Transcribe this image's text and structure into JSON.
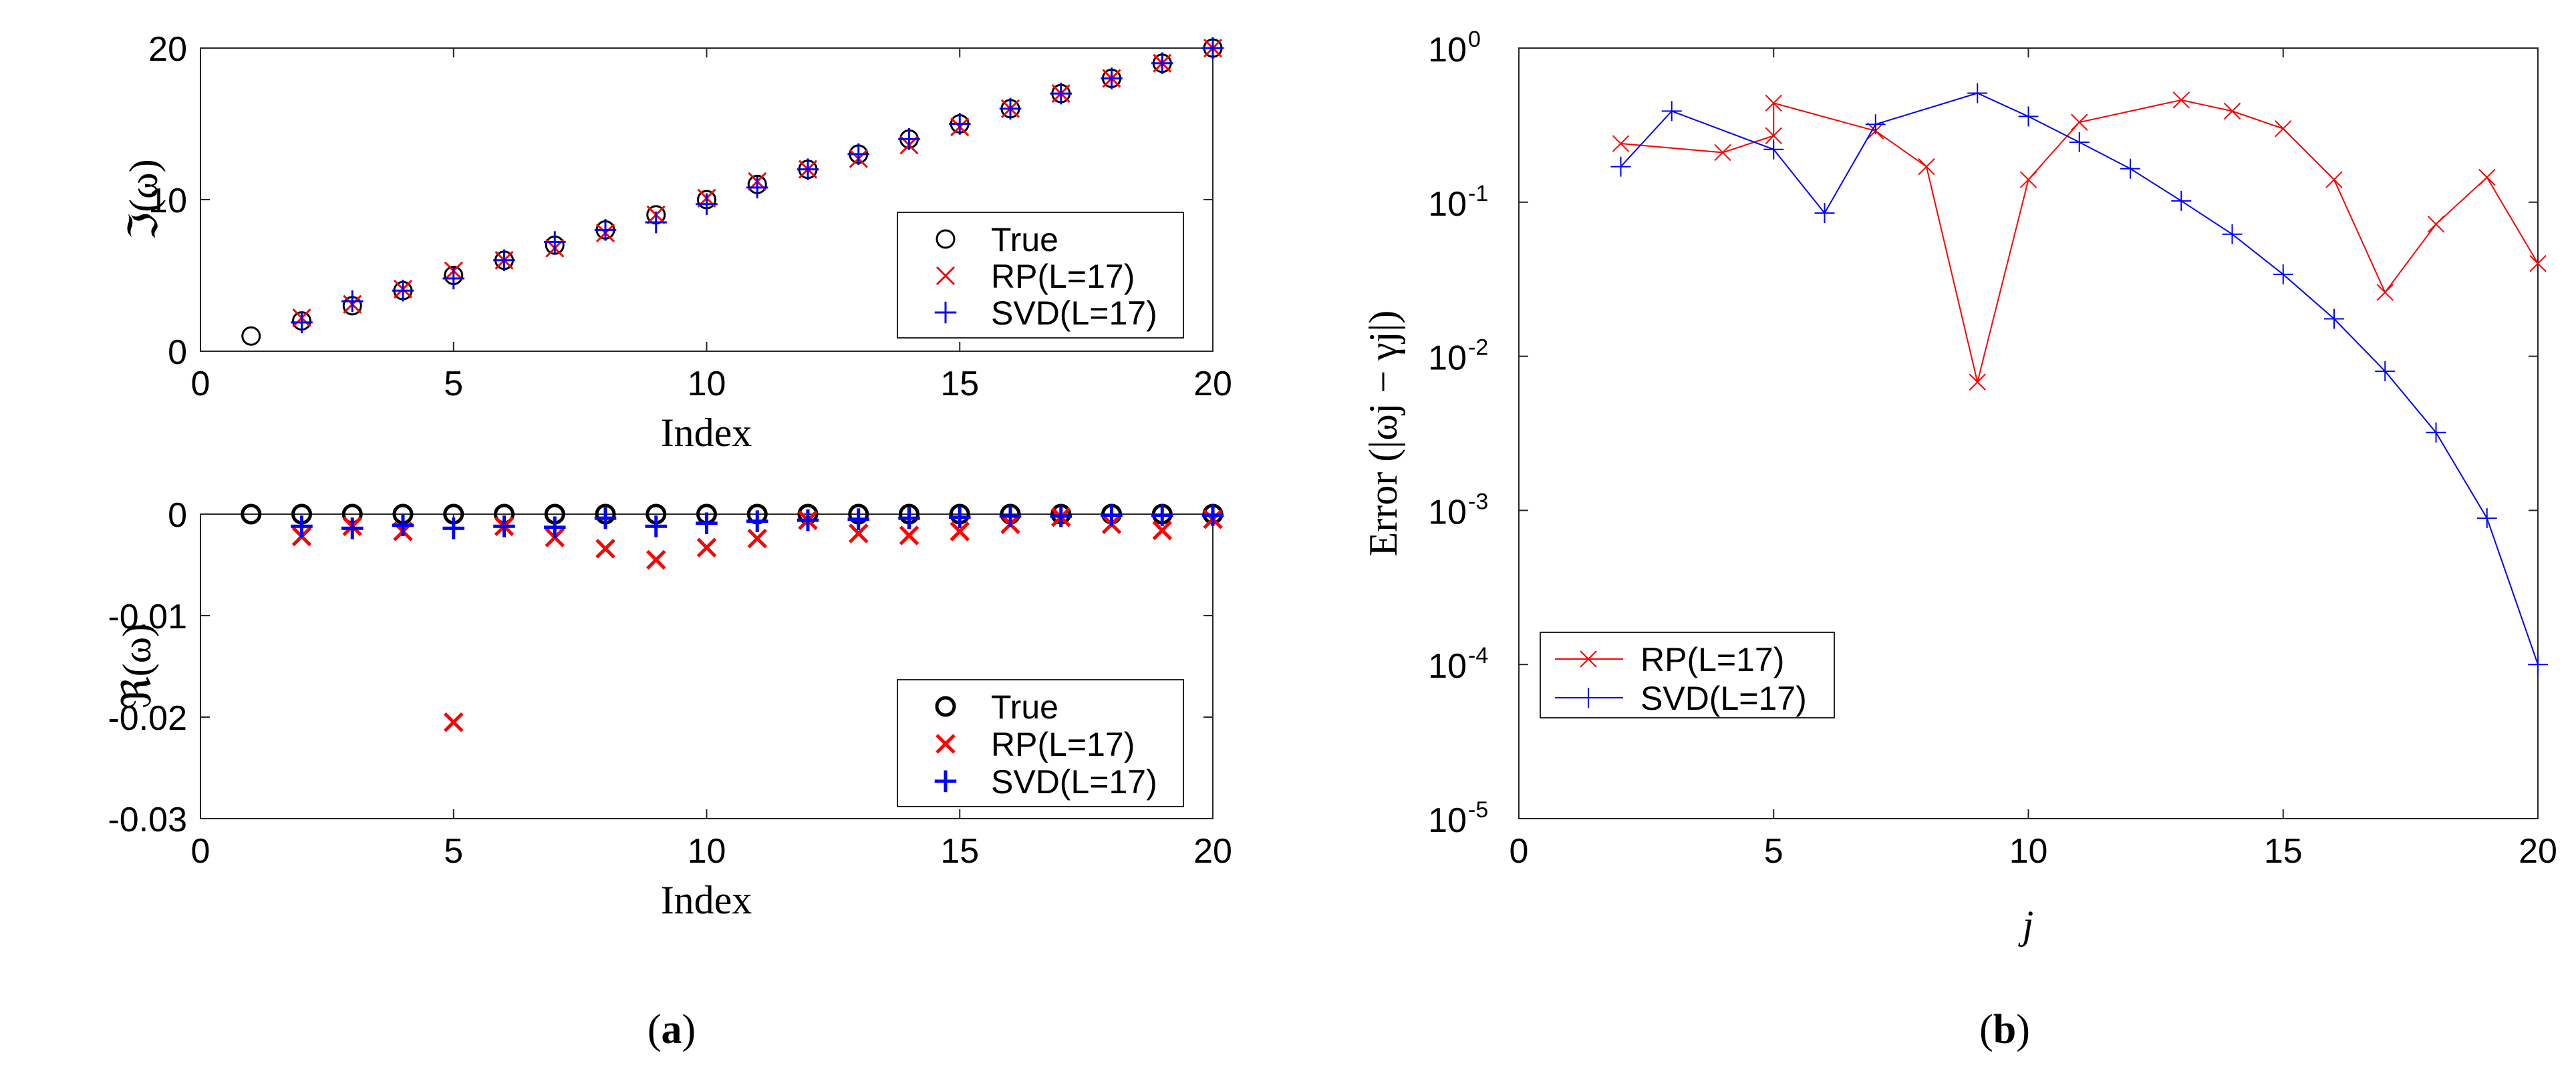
{
  "chart_data": [
    {
      "id": "a-top",
      "type": "scatter",
      "title": "",
      "xlabel": "Index",
      "ylabel": "ℑ(ω)",
      "xlim": [
        0,
        20
      ],
      "ylim": [
        0,
        20
      ],
      "xticks": [
        "0",
        "5",
        "10",
        "15",
        "20"
      ],
      "yticks": [
        "0",
        "10",
        "20"
      ],
      "legend": {
        "position": "lower-right",
        "entries": [
          "True",
          "RP(L=17)",
          "SVD(L=17)"
        ]
      },
      "series": [
        {
          "name": "True",
          "marker": "circle",
          "color": "#000000",
          "x": [
            1,
            2,
            3,
            4,
            5,
            6,
            7,
            8,
            9,
            10,
            11,
            12,
            13,
            14,
            15,
            16,
            17,
            18,
            19,
            20
          ],
          "y": [
            1,
            2,
            3,
            4,
            5,
            6,
            7,
            8,
            9,
            10,
            11,
            12,
            13,
            14,
            15,
            16,
            17,
            18,
            19,
            20
          ]
        },
        {
          "name": "RP(L=17)",
          "marker": "x",
          "color": "#ff0000",
          "x": [
            2,
            3,
            4,
            5,
            6,
            7,
            8,
            9,
            10,
            11,
            12,
            13,
            14,
            15,
            16,
            17,
            18,
            19,
            20
          ],
          "y": [
            2.2,
            3.1,
            4.1,
            5.3,
            6.0,
            6.8,
            7.8,
            9.0,
            10.1,
            11.2,
            12.0,
            12.7,
            13.6,
            14.8,
            16.0,
            17.0,
            18.0,
            19.0,
            20.0
          ]
        },
        {
          "name": "SVD(L=17)",
          "marker": "plus",
          "color": "#0000ff",
          "x": [
            2,
            3,
            4,
            5,
            6,
            7,
            8,
            9,
            10,
            11,
            12,
            13,
            14,
            15,
            16,
            17,
            18,
            19,
            20
          ],
          "y": [
            1.9,
            3.3,
            4.0,
            4.8,
            6.0,
            7.2,
            8.0,
            8.5,
            9.7,
            10.8,
            12.0,
            13.0,
            14.0,
            15.0,
            16.0,
            17.0,
            18.0,
            19.0,
            20.0
          ]
        }
      ]
    },
    {
      "id": "a-bottom",
      "type": "scatter",
      "title": "",
      "xlabel": "Index",
      "ylabel": "ℜ(ω)",
      "xlim": [
        0,
        20
      ],
      "ylim": [
        -0.03,
        0
      ],
      "xticks": [
        "0",
        "5",
        "10",
        "15",
        "20"
      ],
      "yticks": [
        "0",
        "-0.01",
        "-0.02",
        "-0.03"
      ],
      "legend": {
        "position": "lower-right",
        "entries": [
          "True",
          "RP(L=17)",
          "SVD(L=17)"
        ]
      },
      "series": [
        {
          "name": "True",
          "marker": "circle",
          "color": "#000000",
          "x": [
            1,
            2,
            3,
            4,
            5,
            6,
            7,
            8,
            9,
            10,
            11,
            12,
            13,
            14,
            15,
            16,
            17,
            18,
            19,
            20
          ],
          "y": [
            0,
            0,
            0,
            0,
            0,
            0,
            0,
            0,
            0,
            0,
            0,
            0,
            0,
            0,
            0,
            0,
            0,
            0,
            0,
            0
          ]
        },
        {
          "name": "RP(L=17)",
          "marker": "x",
          "color": "#ff0000",
          "x": [
            2,
            3,
            4,
            5,
            6,
            7,
            8,
            9,
            10,
            11,
            12,
            13,
            14,
            15,
            16,
            17,
            18,
            19,
            20
          ],
          "y": [
            -0.0022,
            -0.0012,
            -0.0017,
            -0.0205,
            -0.0012,
            -0.0023,
            -0.0034,
            -0.0045,
            -0.0033,
            -0.0024,
            -0.0006,
            -0.0019,
            -0.0021,
            -0.0017,
            -0.001,
            -0.0003,
            -0.001,
            -0.0016,
            -0.0005
          ]
        },
        {
          "name": "SVD(L=17)",
          "marker": "plus",
          "color": "#0000ff",
          "x": [
            2,
            3,
            4,
            5,
            6,
            7,
            8,
            9,
            10,
            11,
            12,
            13,
            14,
            15,
            16,
            17,
            18,
            19,
            20
          ],
          "y": [
            -0.0012,
            -0.0014,
            -0.0011,
            -0.0014,
            -0.0012,
            -0.0013,
            -0.0004,
            -0.0012,
            -0.0009,
            -0.0007,
            -0.0006,
            -0.0005,
            -0.0004,
            -0.0003,
            -0.0002,
            -0.0002,
            -0.0001,
            -0.0001,
            -0.0001
          ]
        }
      ]
    },
    {
      "id": "b",
      "type": "line",
      "title": "",
      "xlabel": "j",
      "ylabel": "Error (|ωj − γj|)",
      "xlim": [
        0,
        20
      ],
      "ylim": [
        1e-05,
        1
      ],
      "yscale": "log",
      "xticks": [
        "0",
        "5",
        "10",
        "15",
        "20"
      ],
      "yticks": [
        {
          "base": "10",
          "exp": "0"
        },
        {
          "base": "10",
          "exp": "-1"
        },
        {
          "base": "10",
          "exp": "-2"
        },
        {
          "base": "10",
          "exp": "-3"
        },
        {
          "base": "10",
          "exp": "-4"
        },
        {
          "base": "10",
          "exp": "-5"
        }
      ],
      "legend": {
        "position": "lower-left",
        "entries": [
          "RP(L=17)",
          "SVD(L=17)"
        ]
      },
      "series": [
        {
          "name": "RP(L=17)",
          "marker": "x",
          "color": "#ff0000",
          "x": [
            2,
            4,
            5,
            5,
            7,
            8,
            9,
            10,
            11,
            13,
            14,
            15,
            16,
            17,
            18,
            19,
            20
          ],
          "y": [
            0.24,
            0.21,
            0.27,
            0.44,
            0.29,
            0.17,
            0.0068,
            0.14,
            0.33,
            0.46,
            0.39,
            0.3,
            0.14,
            0.026,
            0.072,
            0.145,
            0.04
          ]
        },
        {
          "name": "SVD(L=17)",
          "marker": "plus",
          "color": "#0000ff",
          "x": [
            2,
            3,
            5,
            6,
            7,
            9,
            10,
            11,
            12,
            13,
            14,
            15,
            16,
            17,
            18,
            19,
            20
          ],
          "y": [
            0.17,
            0.39,
            0.22,
            0.085,
            0.32,
            0.51,
            0.36,
            0.245,
            0.165,
            0.102,
            0.062,
            0.034,
            0.0175,
            0.008,
            0.0032,
            0.00089,
            0.0001
          ]
        }
      ]
    }
  ],
  "captions": {
    "a": {
      "open": "(",
      "letter": "a",
      "close": ")"
    },
    "b": {
      "open": "(",
      "letter": "b",
      "close": ")"
    }
  }
}
